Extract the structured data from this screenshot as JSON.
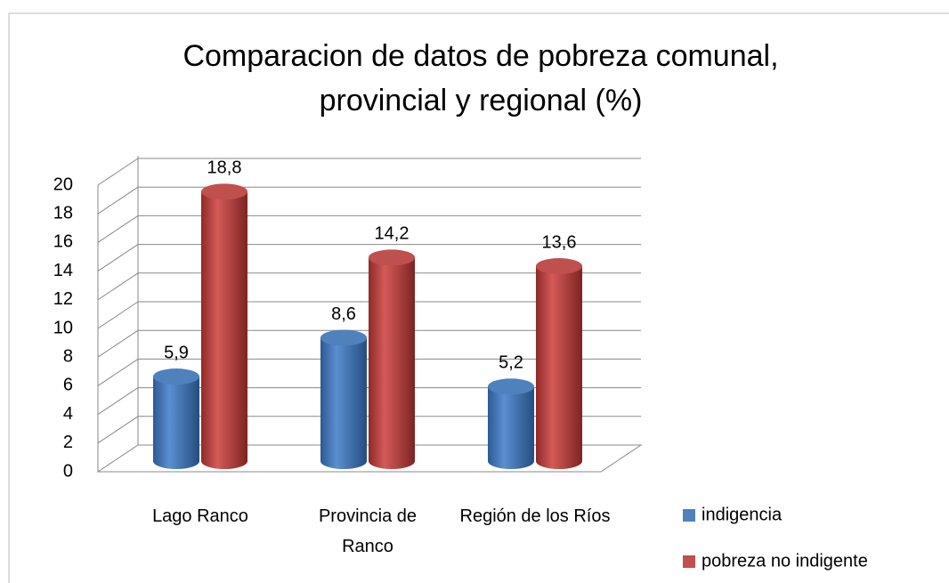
{
  "chart_data": {
    "type": "bar3d",
    "title": "Comparacion de datos de pobreza comunal, provincial y regional (%)",
    "categories": [
      "Lago Ranco",
      "Provincia de Ranco",
      "Región de los Ríos"
    ],
    "series": [
      {
        "name": "indigencia",
        "color": "#4f81bd",
        "values": [
          5.9,
          8.6,
          5.2
        ],
        "value_labels": [
          "5,9",
          "8,6",
          "5,2"
        ]
      },
      {
        "name": "pobreza no indigente",
        "color": "#c0504d",
        "values": [
          18.8,
          14.2,
          13.6
        ],
        "value_labels": [
          "18,8",
          "14,2",
          "13,6"
        ]
      }
    ],
    "ylim": [
      0,
      20
    ],
    "yticks": [
      0,
      2,
      4,
      6,
      8,
      10,
      12,
      14,
      16,
      18,
      20
    ],
    "grid": true,
    "legend": "right"
  }
}
